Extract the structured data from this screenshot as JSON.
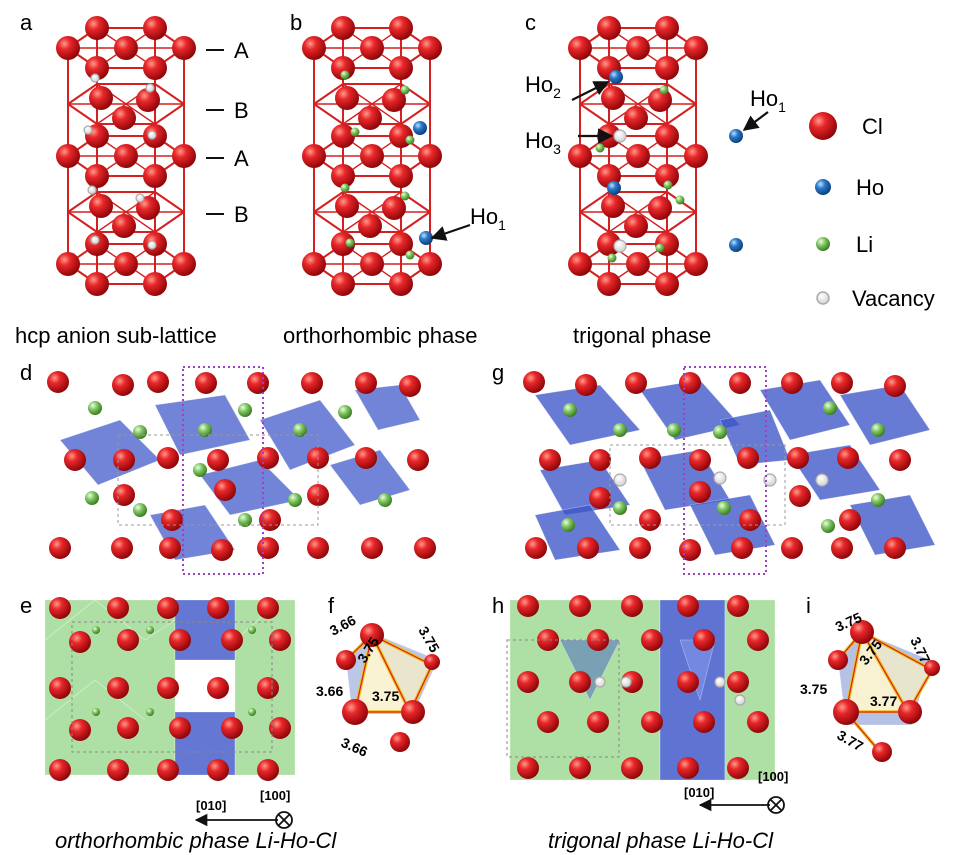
{
  "panel_letters": [
    "a",
    "b",
    "c",
    "d",
    "e",
    "f",
    "g",
    "h",
    "i"
  ],
  "layer_labels": [
    "A",
    "B",
    "A",
    "B"
  ],
  "atom_labels": {
    "ho1_b": {
      "base": "Ho",
      "sub": "1"
    },
    "ho2_c": {
      "base": "Ho",
      "sub": "2"
    },
    "ho3_c": {
      "base": "Ho",
      "sub": "3"
    },
    "ho1_c": {
      "base": "Ho",
      "sub": "1"
    }
  },
  "legend": [
    {
      "label": "Cl",
      "color": "#d8141b",
      "kind": "cl"
    },
    {
      "label": "Ho",
      "color": "#2a79c8",
      "kind": "ho"
    },
    {
      "label": "Li",
      "color": "#7dc460",
      "kind": "li"
    },
    {
      "label": "Vacancy",
      "color": "#bbbbbb",
      "kind": "vac"
    }
  ],
  "captions_top": [
    "hcp anion sub-lattice",
    "orthorhombic phase",
    "trigonal phase"
  ],
  "captions_bottom": [
    "orthorhombic phase Li-Ho-Cl",
    "trigonal phase Li-Ho-Cl"
  ],
  "axis_labels": {
    "left": "[010]",
    "right": "[100]"
  },
  "distances_f": [
    "3.66",
    "3.75",
    "3.75",
    "3.66",
    "3.75",
    "3.66"
  ],
  "distances_i": [
    "3.75",
    "3.75",
    "3.77",
    "3.75",
    "3.77",
    "3.77"
  ],
  "colors": {
    "cl": "#d8141b",
    "ho": "#2a79c8",
    "li": "#7dc460",
    "vacancy": "#bbbbbb",
    "lattice": "#d42020",
    "ho_polyhedra": "#3c55c8",
    "li_polyhedra": "#6cc45a",
    "unit_cell_dotted": "#a040c0",
    "triangle_edge": "#f0c020"
  }
}
